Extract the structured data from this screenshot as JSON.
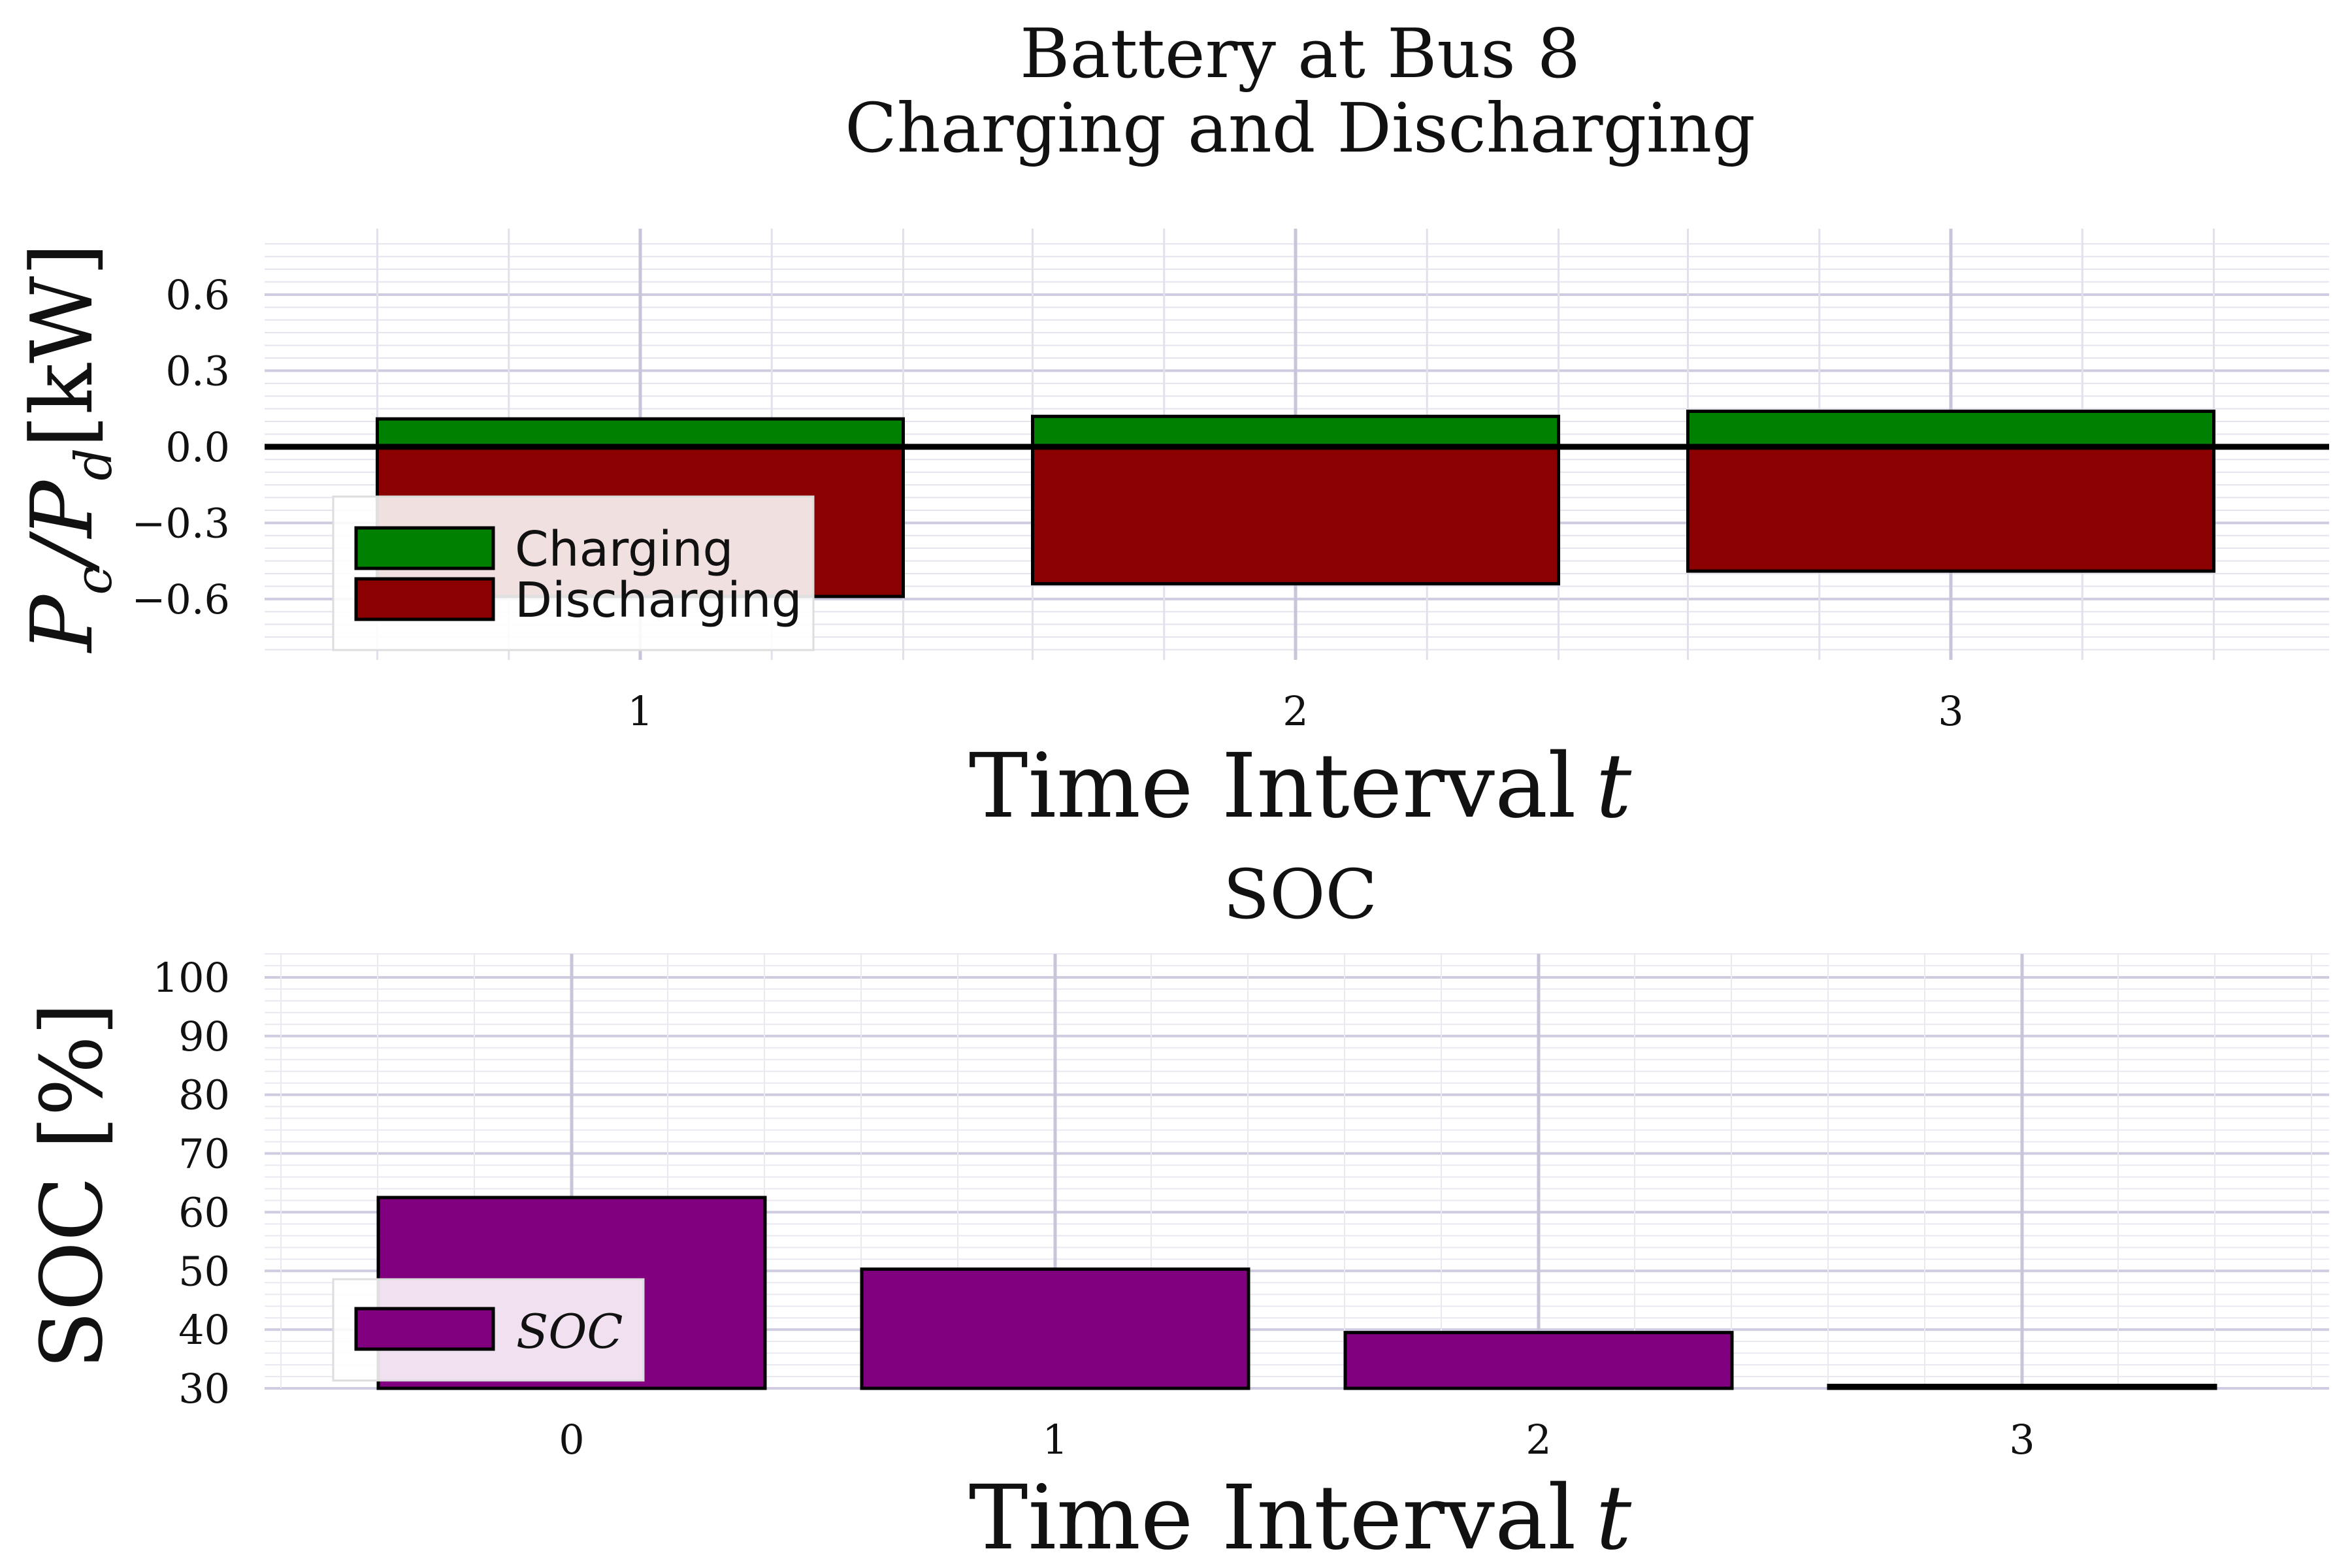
{
  "chart_data": [
    {
      "type": "bar",
      "title": [
        "Battery at Bus 8",
        "Charging and Discharging"
      ],
      "xlabel": "Time Interval t",
      "ylabel": "P_c / P_d [kW]",
      "ylabel_parts": {
        "p1": "P",
        "s1": "c",
        "slash": "/",
        "p2": "P",
        "s2": "d",
        "unit": "[kW]"
      },
      "categories": [
        "1",
        "2",
        "3"
      ],
      "series": [
        {
          "name": "Charging",
          "values": [
            0.11,
            0.12,
            0.14
          ],
          "color": "#008000"
        },
        {
          "name": "Discharging",
          "values": [
            -0.59,
            -0.54,
            -0.49
          ],
          "color": "#8b0000"
        }
      ],
      "yticks": [
        -0.6,
        -0.3,
        0.0,
        0.3,
        0.6
      ],
      "ytick_labels": [
        "−0.6",
        "−0.3",
        "0.0",
        "0.3",
        "0.6"
      ],
      "ylim": [
        -0.84,
        0.86
      ],
      "grid": true,
      "zero_line": true,
      "legend": "bottom-left"
    },
    {
      "type": "bar",
      "title": "SOC",
      "xlabel": "Time Interval t",
      "ylabel": "SOC [%]",
      "categories": [
        "0",
        "1",
        "2",
        "3"
      ],
      "series": [
        {
          "name": "SOC",
          "values": [
            62.5,
            50.3,
            39.5,
            30.5
          ],
          "color": "#800080"
        }
      ],
      "yticks": [
        30,
        40,
        50,
        60,
        70,
        80,
        90,
        100
      ],
      "ytick_labels": [
        "30",
        "40",
        "50",
        "60",
        "70",
        "80",
        "90",
        "100"
      ],
      "ylim": [
        30,
        104
      ],
      "grid": true,
      "legend": "bottom-left"
    }
  ]
}
